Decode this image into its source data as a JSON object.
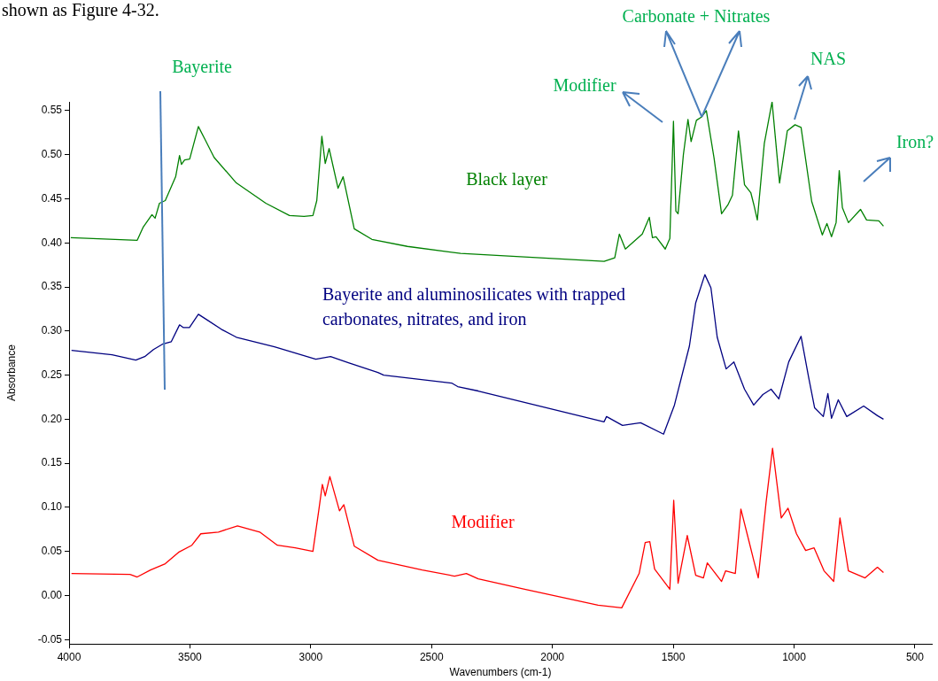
{
  "chart_data": {
    "type": "line",
    "title": "shown as Figure 4-32.",
    "xlabel": "Wavenumbers (cm-1)",
    "ylabel": "Absorbance",
    "xlim": [
      4000,
      430
    ],
    "ylim": [
      -0.055,
      0.56
    ],
    "xticks": [
      4000,
      3500,
      3000,
      2500,
      2000,
      1500,
      1000,
      500
    ],
    "yticks": [
      {
        "value": -0.05,
        "label": "-0.05"
      },
      {
        "value": 0,
        "label": "0.00"
      },
      {
        "value": 0.05,
        "label": "0.05"
      },
      {
        "value": 0.1,
        "label": "0.10"
      },
      {
        "value": 0.15,
        "label": "0.15"
      },
      {
        "value": 0.2,
        "label": "0.20"
      },
      {
        "value": 0.25,
        "label": "0.25"
      },
      {
        "value": 0.3,
        "label": "0.30"
      },
      {
        "value": 0.35,
        "label": "0.35"
      },
      {
        "value": 0.4,
        "label": "0.40"
      },
      {
        "value": 0.45,
        "label": "0.45"
      },
      {
        "value": 0.5,
        "label": "0.50"
      },
      {
        "value": 0.55,
        "label": "0.55"
      }
    ],
    "grid": false,
    "marker": "none",
    "line_style": "solid",
    "series": [
      {
        "name": "Black layer",
        "color": "#008000",
        "x": [
          3993,
          3718,
          3693,
          3657,
          3644,
          3626,
          3602,
          3559,
          3543,
          3535,
          3522,
          3501,
          3465,
          3437,
          3400,
          3308,
          3186,
          3088,
          3028,
          2991,
          2975,
          2954,
          2940,
          2924,
          2887,
          2866,
          2820,
          2747,
          2600,
          2380,
          1786,
          1742,
          1723,
          1698,
          1628,
          1599,
          1586,
          1571,
          1533,
          1514,
          1499,
          1489,
          1480,
          1458,
          1439,
          1426,
          1404,
          1382,
          1363,
          1331,
          1300,
          1274,
          1255,
          1230,
          1205,
          1179,
          1167,
          1152,
          1123,
          1091,
          1060,
          1028,
          996,
          971,
          927,
          883,
          864,
          845,
          826,
          813,
          800,
          775,
          725,
          700,
          649,
          630
        ],
        "values": [
          0.406,
          0.403,
          0.418,
          0.432,
          0.428,
          0.445,
          0.448,
          0.475,
          0.499,
          0.489,
          0.494,
          0.495,
          0.532,
          0.517,
          0.497,
          0.468,
          0.445,
          0.431,
          0.43,
          0.431,
          0.448,
          0.521,
          0.49,
          0.507,
          0.462,
          0.475,
          0.416,
          0.404,
          0.396,
          0.388,
          0.379,
          0.383,
          0.41,
          0.393,
          0.41,
          0.429,
          0.406,
          0.407,
          0.393,
          0.405,
          0.538,
          0.436,
          0.433,
          0.5,
          0.54,
          0.515,
          0.539,
          0.543,
          0.55,
          0.496,
          0.433,
          0.443,
          0.454,
          0.527,
          0.466,
          0.457,
          0.444,
          0.426,
          0.513,
          0.56,
          0.468,
          0.527,
          0.534,
          0.531,
          0.447,
          0.409,
          0.422,
          0.407,
          0.423,
          0.482,
          0.44,
          0.423,
          0.438,
          0.426,
          0.425,
          0.419
        ]
      },
      {
        "name": "Bayerite and aluminosilicates with trapped carbonates, nitrates, and iron",
        "color": "#000080",
        "x": [
          3990,
          3822,
          3724,
          3687,
          3651,
          3614,
          3577,
          3543,
          3528,
          3502,
          3465,
          3431,
          3370,
          3308,
          3150,
          2979,
          2918,
          2844,
          2722,
          2698,
          2417,
          2392,
          2307,
          1786,
          1776,
          1710,
          1635,
          1540,
          1495,
          1433,
          1407,
          1369,
          1344,
          1318,
          1281,
          1249,
          1205,
          1167,
          1129,
          1095,
          1063,
          1022,
          971,
          940,
          915,
          879,
          860,
          845,
          817,
          782,
          712,
          655,
          630
        ],
        "values": [
          0.278,
          0.273,
          0.267,
          0.271,
          0.279,
          0.285,
          0.288,
          0.307,
          0.304,
          0.304,
          0.319,
          0.313,
          0.302,
          0.293,
          0.282,
          0.268,
          0.271,
          0.264,
          0.253,
          0.25,
          0.241,
          0.237,
          0.232,
          0.197,
          0.203,
          0.193,
          0.196,
          0.183,
          0.216,
          0.283,
          0.332,
          0.364,
          0.349,
          0.293,
          0.257,
          0.265,
          0.234,
          0.216,
          0.228,
          0.234,
          0.223,
          0.265,
          0.294,
          0.248,
          0.213,
          0.203,
          0.229,
          0.201,
          0.222,
          0.203,
          0.215,
          0.204,
          0.2
        ]
      },
      {
        "name": "Modifier",
        "color": "#ff0000",
        "x": [
          3990,
          3748,
          3718,
          3663,
          3602,
          3547,
          3492,
          3455,
          3382,
          3303,
          3211,
          3138,
          3064,
          2991,
          2966,
          2952,
          2940,
          2921,
          2881,
          2863,
          2820,
          2722,
          2539,
          2405,
          2356,
          2307,
          2115,
          1811,
          1713,
          1641,
          1616,
          1597,
          1577,
          1514,
          1498,
          1480,
          1442,
          1407,
          1375,
          1359,
          1300,
          1283,
          1243,
          1220,
          1186,
          1167,
          1148,
          1116,
          1089,
          1053,
          1025,
          990,
          952,
          917,
          876,
          836,
          810,
          775,
          706,
          655,
          630
        ],
        "values": [
          0.025,
          0.024,
          0.021,
          0.029,
          0.036,
          0.049,
          0.057,
          0.07,
          0.072,
          0.079,
          0.072,
          0.057,
          0.054,
          0.05,
          0.098,
          0.126,
          0.113,
          0.135,
          0.096,
          0.103,
          0.056,
          0.04,
          0.029,
          0.022,
          0.025,
          0.019,
          0.007,
          -0.011,
          -0.014,
          0.025,
          0.06,
          0.061,
          0.03,
          0.007,
          0.108,
          0.014,
          0.068,
          0.023,
          0.02,
          0.037,
          0.016,
          0.028,
          0.025,
          0.098,
          0.061,
          0.04,
          0.02,
          0.105,
          0.167,
          0.088,
          0.099,
          0.07,
          0.051,
          0.054,
          0.028,
          0.016,
          0.088,
          0.028,
          0.02,
          0.032,
          0.026
        ]
      }
    ],
    "annotations": [
      "Bayerite",
      "Modifier",
      {
        "text": "Carbonate + Nitrates",
        "x": 1382,
        "y": 0.543
      },
      "NAS",
      "Iron?"
    ]
  }
}
